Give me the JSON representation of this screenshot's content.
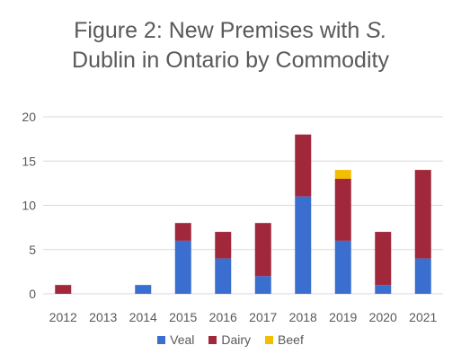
{
  "chart_data": {
    "type": "bar",
    "stacked": true,
    "title_line1": "Figure 2: New Premises with ",
    "title_italic": "S.",
    "title_line2": "Dublin in Ontario by Commodity",
    "xlabel": "",
    "ylabel": "",
    "categories": [
      "2012",
      "2013",
      "2014",
      "2015",
      "2016",
      "2017",
      "2018",
      "2019",
      "2020",
      "2021"
    ],
    "series": [
      {
        "name": "Veal",
        "color": "#3a6fd0",
        "values": [
          0,
          0,
          1,
          6,
          4,
          2,
          11,
          6,
          1,
          4
        ]
      },
      {
        "name": "Dairy",
        "color": "#a0283a",
        "values": [
          1,
          0,
          0,
          2,
          3,
          6,
          7,
          7,
          6,
          10
        ]
      },
      {
        "name": "Beef",
        "color": "#f5bd00",
        "values": [
          0,
          0,
          0,
          0,
          0,
          0,
          0,
          1,
          0,
          0
        ]
      }
    ],
    "ylim": [
      0,
      20
    ],
    "yticks": [
      0,
      5,
      10,
      15,
      20
    ],
    "grid": true,
    "legend_position": "bottom"
  }
}
